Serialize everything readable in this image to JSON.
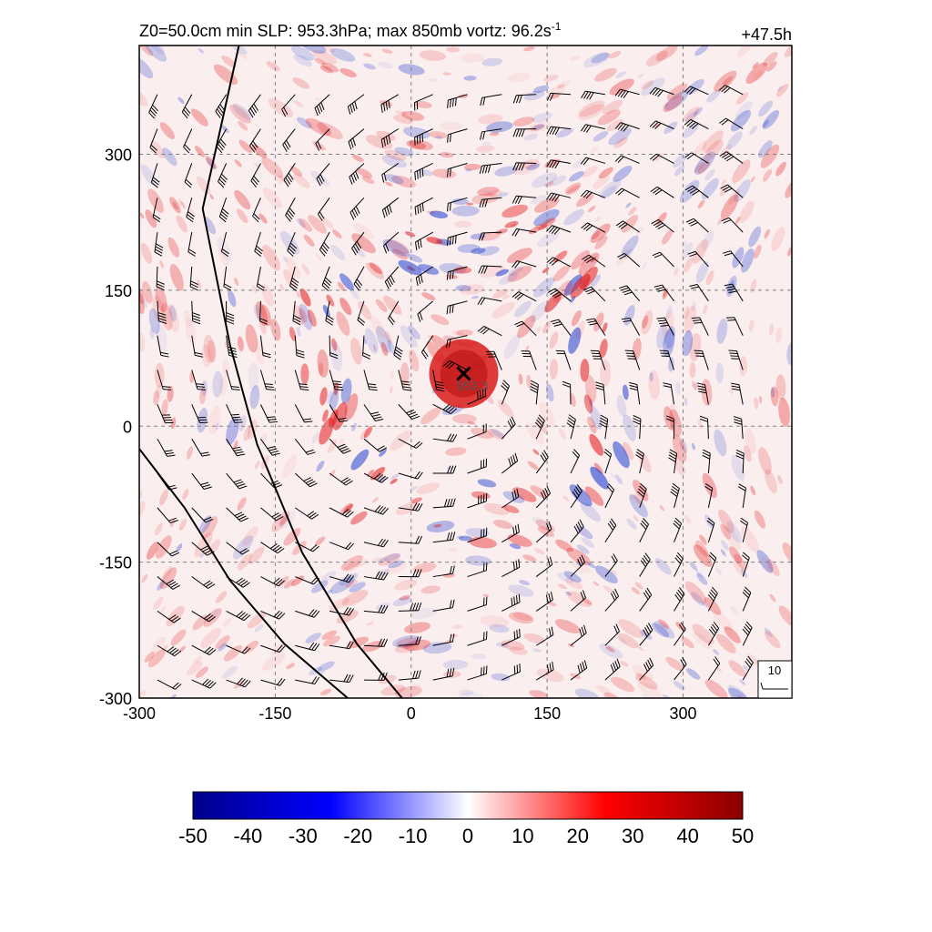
{
  "chart_data": {
    "type": "heatmap",
    "title": "Z0=50.0cm  min SLP: 953.3hPa; max 850mb vortz:  96.2s",
    "title_superscript": "-1",
    "time_label": "+47.5h",
    "x_ticks": [
      "-300",
      "-150",
      "0",
      "150",
      "300"
    ],
    "y_ticks": [
      "300",
      "150",
      "0",
      "-150",
      "-300"
    ],
    "xlim": [
      -300,
      420
    ],
    "ylim": [
      -300,
      420
    ],
    "grid": true,
    "center_marker": {
      "x": 58,
      "y": 58,
      "label": "953.3"
    },
    "wind_scale_label": "10",
    "colorbar": {
      "ticks": [
        "-50",
        "-40",
        "-30",
        "-20",
        "-10",
        "0",
        "10",
        "20",
        "30",
        "40",
        "50"
      ],
      "range": [
        -50,
        50
      ],
      "colors": [
        "#00008b",
        "#0000ff",
        "#ffffff",
        "#ff0000",
        "#8b0000"
      ]
    },
    "contour_lines": [
      {
        "name": "coast-west",
        "points": [
          [
            -190,
            420
          ],
          [
            -230,
            240
          ],
          [
            -200,
            90
          ],
          [
            -170,
            -20
          ],
          [
            -120,
            -140
          ],
          [
            -60,
            -240
          ],
          [
            -10,
            -300
          ]
        ]
      },
      {
        "name": "coast-south",
        "points": [
          [
            -300,
            -25
          ],
          [
            -250,
            -90
          ],
          [
            -200,
            -170
          ],
          [
            -140,
            -240
          ],
          [
            -70,
            -300
          ]
        ]
      }
    ],
    "palette": {
      "warm": "#e31a1c",
      "cold": "#1f3fd1",
      "grid": "#808080"
    }
  }
}
